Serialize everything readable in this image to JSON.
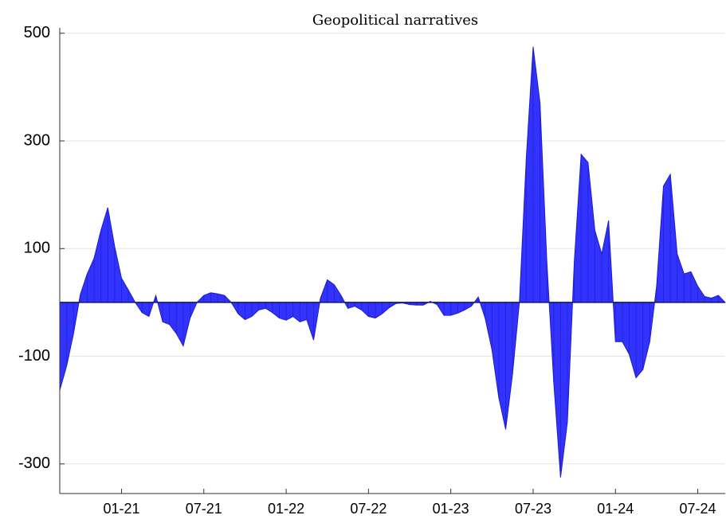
{
  "chart_data": {
    "type": "area",
    "title": "Geopolitical narratives",
    "categories": [
      null,
      null,
      null,
      null,
      null,
      null,
      null,
      null,
      null,
      "01-21",
      null,
      null,
      null,
      null,
      null,
      null,
      null,
      null,
      null,
      null,
      null,
      "07-21",
      null,
      null,
      null,
      null,
      null,
      null,
      null,
      null,
      null,
      null,
      null,
      "01-22",
      null,
      null,
      null,
      null,
      null,
      null,
      null,
      null,
      null,
      null,
      null,
      "07-22",
      null,
      null,
      null,
      null,
      null,
      null,
      null,
      null,
      null,
      null,
      null,
      "01-23",
      null,
      null,
      null,
      null,
      null,
      null,
      null,
      null,
      null,
      null,
      null,
      "07-23",
      null,
      null,
      null,
      null,
      null,
      null,
      null,
      null,
      null,
      null,
      null,
      "01-24",
      null,
      null,
      null,
      null,
      null,
      null,
      null,
      null,
      null,
      null,
      null,
      "07-24",
      null,
      null,
      null,
      null
    ],
    "values": [
      -163,
      -118,
      -58,
      15,
      53,
      82,
      134,
      176,
      104,
      45,
      23,
      0,
      -19,
      -26,
      13,
      -36,
      -41,
      -58,
      -81,
      -29,
      0,
      13,
      18,
      16,
      13,
      0,
      -21,
      -32,
      -26,
      -14,
      -11,
      -19,
      -29,
      -33,
      -26,
      -36,
      -32,
      -70,
      8,
      42,
      33,
      13,
      -11,
      -7,
      -14,
      -26,
      -29,
      -21,
      -10,
      -2,
      -1,
      -4,
      -5,
      -5,
      2,
      -4,
      -24,
      -24,
      -20,
      -14,
      -7,
      10,
      -29,
      -88,
      -177,
      -236,
      -133,
      0,
      267,
      475,
      371,
      75,
      -147,
      -325,
      -222,
      75,
      275,
      260,
      134,
      90,
      152,
      -73,
      -73,
      -96,
      -140,
      -125,
      -73,
      30,
      216,
      238,
      90,
      53,
      57,
      30,
      11,
      8,
      13,
      0
    ],
    "color": "#3333ff",
    "ylim": [
      -355,
      510
    ],
    "yticks": [
      500,
      300,
      100,
      -100,
      -300
    ],
    "grid": true
  }
}
